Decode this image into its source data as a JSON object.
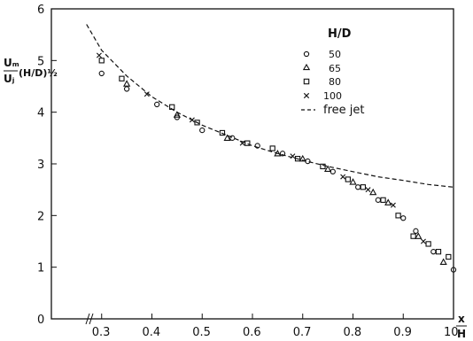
{
  "chart_data": {
    "type": "scatter",
    "title": "",
    "xlabel_num": "x",
    "xlabel_den": "H",
    "ylabel_num": "Uₘ",
    "ylabel_den": "Uⱼ",
    "ylabel_factor": "(H/D)½",
    "xlim": [
      0.2,
      1.0
    ],
    "ylim": [
      0,
      6
    ],
    "x_ticks": [
      "0.3",
      "0.4",
      "0.5",
      "0.6",
      "0.7",
      "0.8",
      "0.9",
      "10"
    ],
    "y_ticks": [
      "0",
      "1",
      "2",
      "3",
      "4",
      "5",
      "6"
    ],
    "grid": false,
    "legend": {
      "title": "H/D",
      "placement": "top-right",
      "entries": [
        "50",
        "65",
        "80",
        "100",
        "free jet"
      ]
    },
    "series": [
      {
        "name": "50",
        "marker": "circle",
        "points": [
          [
            0.3,
            4.75
          ],
          [
            0.35,
            4.45
          ],
          [
            0.41,
            4.15
          ],
          [
            0.45,
            3.9
          ],
          [
            0.5,
            3.65
          ],
          [
            0.56,
            3.5
          ],
          [
            0.61,
            3.35
          ],
          [
            0.66,
            3.2
          ],
          [
            0.71,
            3.05
          ],
          [
            0.76,
            2.85
          ],
          [
            0.81,
            2.55
          ],
          [
            0.85,
            2.3
          ],
          [
            0.9,
            1.95
          ],
          [
            0.925,
            1.7
          ],
          [
            0.96,
            1.3
          ],
          [
            1.0,
            0.95
          ]
        ]
      },
      {
        "name": "65",
        "marker": "triangle",
        "points": [
          [
            0.35,
            4.55
          ],
          [
            0.45,
            3.95
          ],
          [
            0.55,
            3.5
          ],
          [
            0.65,
            3.2
          ],
          [
            0.7,
            3.1
          ],
          [
            0.75,
            2.9
          ],
          [
            0.8,
            2.65
          ],
          [
            0.84,
            2.45
          ],
          [
            0.87,
            2.25
          ],
          [
            0.93,
            1.6
          ],
          [
            0.98,
            1.1
          ]
        ]
      },
      {
        "name": "80",
        "marker": "square",
        "points": [
          [
            0.3,
            5.0
          ],
          [
            0.34,
            4.65
          ],
          [
            0.44,
            4.1
          ],
          [
            0.49,
            3.8
          ],
          [
            0.54,
            3.6
          ],
          [
            0.59,
            3.4
          ],
          [
            0.64,
            3.3
          ],
          [
            0.69,
            3.1
          ],
          [
            0.74,
            2.95
          ],
          [
            0.79,
            2.7
          ],
          [
            0.82,
            2.55
          ],
          [
            0.86,
            2.3
          ],
          [
            0.89,
            2.0
          ],
          [
            0.92,
            1.6
          ],
          [
            0.95,
            1.45
          ],
          [
            0.97,
            1.3
          ],
          [
            0.99,
            1.2
          ]
        ]
      },
      {
        "name": "100",
        "marker": "cross",
        "points": [
          [
            0.295,
            5.1
          ],
          [
            0.39,
            4.35
          ],
          [
            0.48,
            3.85
          ],
          [
            0.58,
            3.4
          ],
          [
            0.68,
            3.15
          ],
          [
            0.78,
            2.75
          ],
          [
            0.83,
            2.5
          ],
          [
            0.88,
            2.2
          ],
          [
            0.94,
            1.5
          ]
        ]
      },
      {
        "name": "free jet",
        "marker": "dashed-line",
        "points": [
          [
            0.27,
            5.7
          ],
          [
            0.3,
            5.2
          ],
          [
            0.35,
            4.7
          ],
          [
            0.4,
            4.3
          ],
          [
            0.45,
            4.0
          ],
          [
            0.5,
            3.75
          ],
          [
            0.55,
            3.55
          ],
          [
            0.6,
            3.35
          ],
          [
            0.65,
            3.2
          ],
          [
            0.7,
            3.07
          ],
          [
            0.75,
            2.95
          ],
          [
            0.8,
            2.85
          ],
          [
            0.85,
            2.75
          ],
          [
            0.9,
            2.68
          ],
          [
            0.95,
            2.6
          ],
          [
            1.0,
            2.55
          ]
        ]
      }
    ]
  }
}
